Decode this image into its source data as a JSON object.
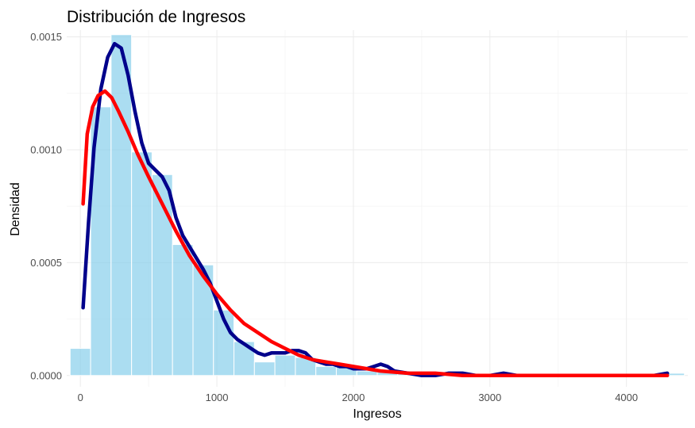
{
  "chart_data": {
    "type": "histogram",
    "title": "Distribución de Ingresos",
    "xlabel": "Ingresos",
    "ylabel": "Densidad",
    "xlim": [
      -100,
      4450
    ],
    "ylim": [
      -5e-05,
      0.00153
    ],
    "x_ticks": [
      0,
      1000,
      2000,
      3000,
      4000
    ],
    "x_tick_labels": [
      "0",
      "1000",
      "2000",
      "3000",
      "4000"
    ],
    "y_ticks": [
      0,
      0.0005,
      0.001,
      0.0015
    ],
    "y_tick_labels": [
      "0.0000",
      "0.0005",
      "0.0010",
      "0.0015"
    ],
    "grid": true,
    "bin_width": 150,
    "bins": [
      {
        "start": -75,
        "density": 0.00012
      },
      {
        "start": 75,
        "density": 0.00119
      },
      {
        "start": 225,
        "density": 0.00151
      },
      {
        "start": 375,
        "density": 0.00099
      },
      {
        "start": 525,
        "density": 0.00089
      },
      {
        "start": 675,
        "density": 0.00058
      },
      {
        "start": 825,
        "density": 0.00049
      },
      {
        "start": 975,
        "density": 0.00029
      },
      {
        "start": 1125,
        "density": 0.00015
      },
      {
        "start": 1275,
        "density": 6e-05
      },
      {
        "start": 1425,
        "density": 9e-05
      },
      {
        "start": 1575,
        "density": 8e-05
      },
      {
        "start": 1725,
        "density": 4e-05
      },
      {
        "start": 1875,
        "density": 4e-05
      },
      {
        "start": 2025,
        "density": 2e-05
      },
      {
        "start": 2175,
        "density": 2e-05
      },
      {
        "start": 2325,
        "density": 1e-05
      },
      {
        "start": 2475,
        "density": 1e-05
      },
      {
        "start": 2625,
        "density": 1e-05
      },
      {
        "start": 2775,
        "density": 1e-05
      },
      {
        "start": 2925,
        "density": 0.0
      },
      {
        "start": 3075,
        "density": 1e-05
      },
      {
        "start": 3225,
        "density": 0.0
      },
      {
        "start": 3375,
        "density": 0.0
      },
      {
        "start": 3525,
        "density": 0.0
      },
      {
        "start": 3675,
        "density": 0.0
      },
      {
        "start": 3825,
        "density": 0.0
      },
      {
        "start": 3975,
        "density": 0.0
      },
      {
        "start": 4125,
        "density": 0.0
      },
      {
        "start": 4275,
        "density": 1e-05
      }
    ],
    "series": [
      {
        "kind": "density",
        "color": "#00008b",
        "points": [
          [
            20,
            0.0003
          ],
          [
            60,
            0.00068
          ],
          [
            100,
            0.00101
          ],
          [
            150,
            0.00127
          ],
          [
            200,
            0.00141
          ],
          [
            250,
            0.00147
          ],
          [
            300,
            0.00145
          ],
          [
            350,
            0.00133
          ],
          [
            400,
            0.00117
          ],
          [
            450,
            0.00103
          ],
          [
            500,
            0.00094
          ],
          [
            550,
            0.00091
          ],
          [
            600,
            0.00088
          ],
          [
            650,
            0.00082
          ],
          [
            700,
            0.0007
          ],
          [
            750,
            0.00062
          ],
          [
            800,
            0.00057
          ],
          [
            850,
            0.00052
          ],
          [
            900,
            0.00047
          ],
          [
            950,
            0.00041
          ],
          [
            1000,
            0.00033
          ],
          [
            1050,
            0.00025
          ],
          [
            1100,
            0.00019
          ],
          [
            1150,
            0.00016
          ],
          [
            1200,
            0.00014
          ],
          [
            1250,
            0.00012
          ],
          [
            1300,
            0.0001
          ],
          [
            1350,
            9e-05
          ],
          [
            1400,
            0.0001
          ],
          [
            1450,
            0.0001
          ],
          [
            1500,
            0.0001
          ],
          [
            1550,
            0.00011
          ],
          [
            1600,
            0.00011
          ],
          [
            1650,
            0.0001
          ],
          [
            1700,
            7e-05
          ],
          [
            1750,
            6e-05
          ],
          [
            1800,
            5e-05
          ],
          [
            1850,
            5e-05
          ],
          [
            1900,
            4e-05
          ],
          [
            1950,
            4e-05
          ],
          [
            2000,
            3e-05
          ],
          [
            2050,
            3e-05
          ],
          [
            2100,
            3e-05
          ],
          [
            2150,
            4e-05
          ],
          [
            2200,
            5e-05
          ],
          [
            2250,
            4e-05
          ],
          [
            2300,
            2e-05
          ],
          [
            2400,
            1e-05
          ],
          [
            2500,
            0.0
          ],
          [
            2600,
            0.0
          ],
          [
            2700,
            1e-05
          ],
          [
            2800,
            1e-05
          ],
          [
            2900,
            0.0
          ],
          [
            3000,
            0.0
          ],
          [
            3100,
            1e-05
          ],
          [
            3200,
            0.0
          ],
          [
            3400,
            0.0
          ],
          [
            3700,
            0.0
          ],
          [
            4000,
            0.0
          ],
          [
            4200,
            0.0
          ],
          [
            4300,
            1e-05
          ]
        ]
      },
      {
        "kind": "fitted",
        "color": "#ff0000",
        "points": [
          [
            20,
            0.00076
          ],
          [
            50,
            0.00107
          ],
          [
            90,
            0.00119
          ],
          [
            130,
            0.00124
          ],
          [
            180,
            0.00126
          ],
          [
            230,
            0.00123
          ],
          [
            280,
            0.00117
          ],
          [
            350,
            0.00108
          ],
          [
            420,
            0.00098
          ],
          [
            500,
            0.00088
          ],
          [
            600,
            0.00076
          ],
          [
            700,
            0.00064
          ],
          [
            800,
            0.00053
          ],
          [
            900,
            0.00044
          ],
          [
            1000,
            0.00036
          ],
          [
            1100,
            0.00029
          ],
          [
            1200,
            0.00023
          ],
          [
            1300,
            0.00019
          ],
          [
            1400,
            0.00015
          ],
          [
            1500,
            0.00012
          ],
          [
            1600,
            9e-05
          ],
          [
            1700,
            7e-05
          ],
          [
            1800,
            6e-05
          ],
          [
            1900,
            5e-05
          ],
          [
            2000,
            4e-05
          ],
          [
            2200,
            2e-05
          ],
          [
            2400,
            1e-05
          ],
          [
            2600,
            1e-05
          ],
          [
            2800,
            0.0
          ],
          [
            3000,
            0.0
          ],
          [
            3500,
            0.0
          ],
          [
            4000,
            0.0
          ],
          [
            4300,
            0.0
          ]
        ]
      }
    ]
  }
}
